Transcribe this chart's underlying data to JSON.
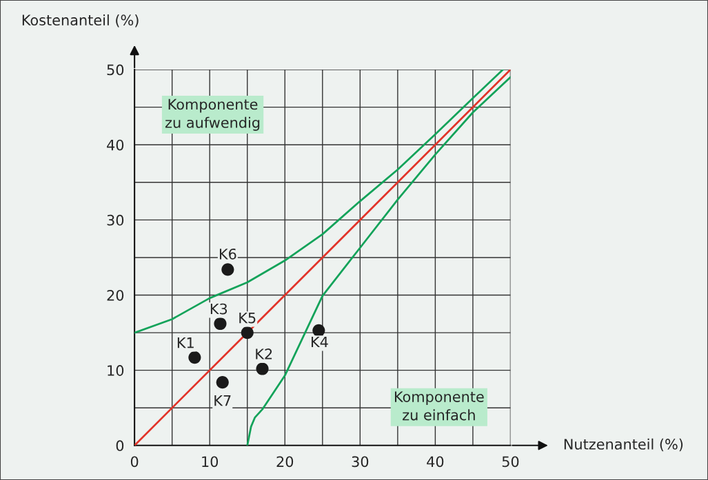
{
  "chart_data": {
    "type": "scatter",
    "xlabel": "Nutzenanteil (%)",
    "ylabel": "Kostenanteil (%)",
    "xlim": [
      0,
      50
    ],
    "ylim": [
      0,
      50
    ],
    "xticks": [
      0,
      {
        "value": 5,
        "label": null
      },
      10,
      {
        "value": 15,
        "label": null
      },
      20,
      {
        "value": 25,
        "label": null
      },
      30,
      {
        "value": 35,
        "label": null
      },
      40,
      {
        "value": 45,
        "label": null
      },
      50
    ],
    "yticks": [
      0,
      {
        "value": 5,
        "label": null
      },
      10,
      {
        "value": 15,
        "label": null
      },
      20,
      {
        "value": 25,
        "label": null
      },
      30,
      {
        "value": 35,
        "label": null
      },
      40,
      {
        "value": 45,
        "label": null
      },
      50
    ],
    "grid": true,
    "legend": false,
    "marker": "circle",
    "series": [
      {
        "type": "line",
        "color": "#e2342a",
        "x": [
          0,
          50
        ],
        "values": [
          0,
          50
        ],
        "marker": "none"
      },
      {
        "type": "line",
        "color": "#13a35a",
        "x": [
          0,
          5,
          10,
          15,
          20,
          25,
          30,
          35,
          40,
          45,
          49
        ],
        "values": [
          15,
          16.8,
          19.6,
          21.7,
          24.6,
          28.1,
          32.5,
          36.7,
          41.4,
          46.2,
          50
        ],
        "marker": "none"
      },
      {
        "type": "line",
        "color": "#13a35a",
        "x": [
          15,
          15.5,
          16,
          17,
          20,
          25,
          30,
          35,
          40,
          45,
          50
        ],
        "values": [
          0,
          2.5,
          3.7,
          4.8,
          9.3,
          19.9,
          26.3,
          32.7,
          38.7,
          44.3,
          49
        ],
        "marker": "none"
      },
      {
        "color": "#1a1a1a",
        "x": [
          8,
          17,
          11.4,
          24.5,
          15,
          12.4,
          11.7
        ],
        "values": [
          11.7,
          10.2,
          16.2,
          15.3,
          15,
          23.4,
          8.4
        ]
      }
    ],
    "annotations": [
      {
        "text": "K1",
        "x": 8,
        "y": 11.7
      },
      {
        "text": "K2",
        "x": 17,
        "y": 10.2
      },
      {
        "text": "K3",
        "x": 11.4,
        "y": 16.2
      },
      {
        "text": "K4",
        "x": 24.5,
        "y": 15.3
      },
      {
        "text": "K5",
        "x": 15,
        "y": 15
      },
      {
        "text": "K6",
        "x": 12.4,
        "y": 23.4
      },
      {
        "text": "K7",
        "x": 11.7,
        "y": 8.4
      },
      "Komponente\nzu aufwendig",
      "Komponente\nzu einfach"
    ]
  }
}
